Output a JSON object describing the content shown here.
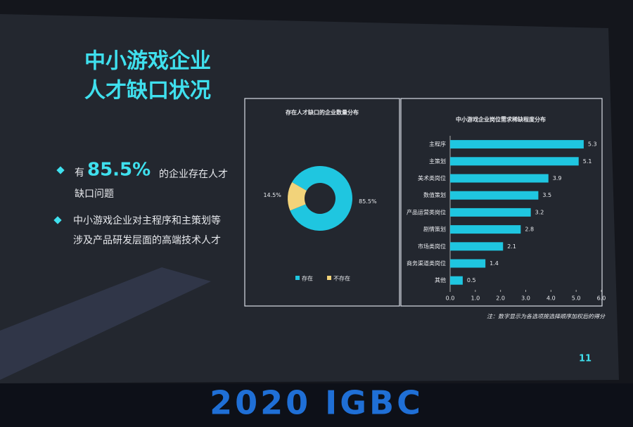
{
  "slide": {
    "title": [
      "中小游戏企业",
      "人才缺口状况"
    ],
    "bullets": [
      [
        "有",
        "85.5%",
        "的企业存在人才",
        "缺口问题"
      ],
      [
        "中小游戏企业对主程序和主策划等",
        "涉及产品研发层面的高端技术人才"
      ]
    ],
    "page_number": "11",
    "banner": "2020 IGBC"
  },
  "chart_data": [
    {
      "type": "pie",
      "title": "存在人才缺口的企业数量分布",
      "categories": [
        "存在",
        "不存在"
      ],
      "values": [
        85.5,
        14.5
      ],
      "value_labels": [
        "85.5%",
        "14.5%"
      ],
      "colors": [
        "#1fc6e0",
        "#f2d37a"
      ]
    },
    {
      "type": "bar",
      "orientation": "horizontal",
      "title": "中小游戏企业岗位需求稀缺程度分布",
      "categories": [
        "主程序",
        "主策划",
        "美术类岗位",
        "数值策划",
        "产品运营类岗位",
        "剧情策划",
        "市场类岗位",
        "商务渠道类岗位",
        "其他"
      ],
      "values": [
        5.3,
        5.1,
        3.9,
        3.5,
        3.2,
        2.8,
        2.1,
        1.4,
        0.5
      ],
      "color": "#1fc6e0",
      "xlim": [
        0,
        6
      ],
      "xticks": [
        {
          "value": 0,
          "label": "0.0"
        },
        {
          "value": 1,
          "label": "1.0"
        },
        {
          "value": 2,
          "label": "2.0"
        },
        {
          "value": 3,
          "label": "3.0"
        },
        {
          "value": 4,
          "label": "4.0"
        },
        {
          "value": 5,
          "label": "5.0"
        },
        {
          "value": 6,
          "label": "6.0"
        }
      ],
      "note": "注：数字显示为各选项按选择顺序加权后的得分"
    }
  ]
}
